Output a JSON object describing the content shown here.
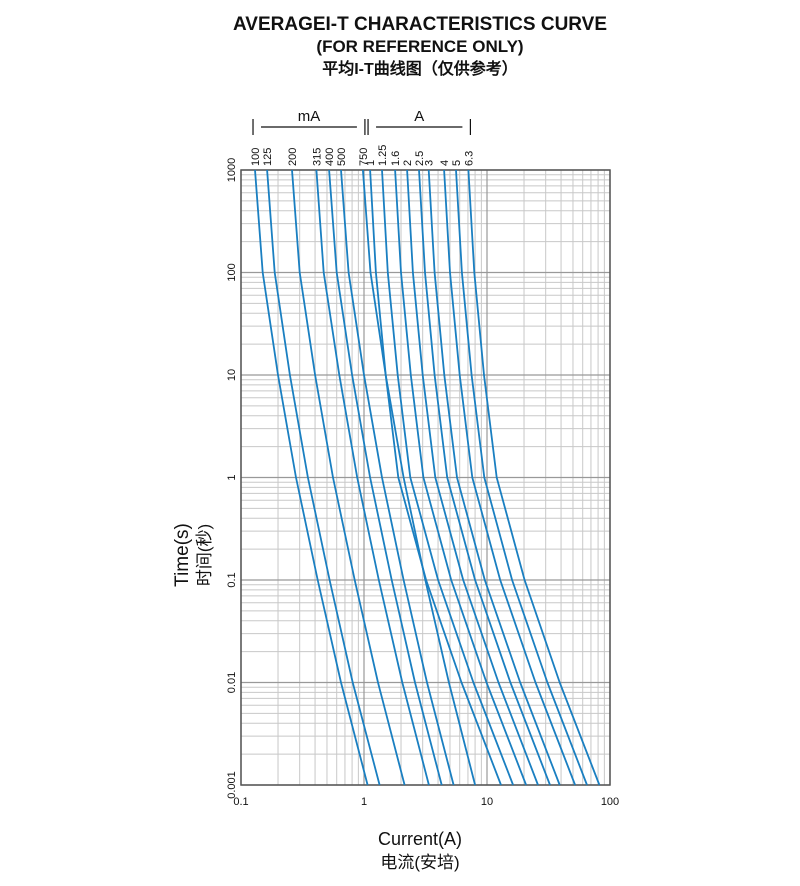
{
  "chart_data": {
    "type": "line",
    "title": "AVERAGEI-T CHARACTERISTICS CURVE",
    "subtitle": "(FOR REFERENCE ONLY)",
    "subtitle_cn": "平均I-T曲线图（仅供参考）",
    "x_label": "Current(A)",
    "x_label_cn": "电流(安培)",
    "y_label": "Time(s)",
    "y_label_cn": "时间(秒)",
    "log_x": true,
    "log_y": true,
    "grid": true,
    "minor_grid": true,
    "xlim": [
      0.1,
      100
    ],
    "xticks": [
      0.1,
      1,
      10,
      100
    ],
    "ylim": [
      0.001,
      1000
    ],
    "yticks": [
      0.001,
      0.01,
      0.1,
      1,
      10,
      100,
      1000
    ],
    "series": [
      {
        "name": "100",
        "unit": "mA",
        "color": "#1a7fc1",
        "x": [
          0.13,
          0.15,
          0.2,
          0.28,
          0.42,
          0.65,
          1.07
        ],
        "values": [
          1000,
          100,
          10,
          1,
          0.1,
          0.01,
          0.001
        ]
      },
      {
        "name": "125",
        "unit": "mA",
        "color": "#1a7fc1",
        "x": [
          0.163,
          0.188,
          0.25,
          0.35,
          0.525,
          0.81,
          1.34
        ],
        "values": [
          1000,
          100,
          10,
          1,
          0.1,
          0.01,
          0.001
        ]
      },
      {
        "name": "200",
        "unit": "mA",
        "color": "#1a7fc1",
        "x": [
          0.26,
          0.3,
          0.4,
          0.56,
          0.84,
          1.3,
          2.14
        ],
        "values": [
          1000,
          100,
          10,
          1,
          0.1,
          0.01,
          0.001
        ]
      },
      {
        "name": "315",
        "unit": "mA",
        "color": "#1a7fc1",
        "x": [
          0.41,
          0.47,
          0.63,
          0.88,
          1.32,
          2.05,
          3.37
        ],
        "values": [
          1000,
          100,
          10,
          1,
          0.1,
          0.01,
          0.001
        ]
      },
      {
        "name": "400",
        "unit": "mA",
        "color": "#1a7fc1",
        "x": [
          0.52,
          0.6,
          0.8,
          1.12,
          1.68,
          2.6,
          4.28
        ],
        "values": [
          1000,
          100,
          10,
          1,
          0.1,
          0.01,
          0.001
        ]
      },
      {
        "name": "500",
        "unit": "mA",
        "color": "#1a7fc1",
        "x": [
          0.65,
          0.75,
          1.0,
          1.4,
          2.1,
          3.25,
          5.35
        ],
        "values": [
          1000,
          100,
          10,
          1,
          0.1,
          0.01,
          0.001
        ]
      },
      {
        "name": "750",
        "unit": "mA",
        "color": "#1a7fc1",
        "x": [
          0.98,
          1.13,
          1.5,
          2.1,
          3.15,
          4.9,
          8.0
        ],
        "values": [
          1000,
          100,
          10,
          1,
          0.1,
          0.01,
          0.001
        ]
      },
      {
        "name": "1",
        "unit": "A",
        "color": "#1a7fc1",
        "x": [
          1.12,
          1.25,
          1.5,
          1.9,
          3.2,
          6.2,
          13
        ],
        "values": [
          1000,
          100,
          10,
          1,
          0.1,
          0.01,
          0.001
        ]
      },
      {
        "name": "1.25",
        "unit": "A",
        "color": "#1a7fc1",
        "x": [
          1.4,
          1.56,
          1.88,
          2.38,
          4,
          7.75,
          16.3
        ],
        "values": [
          1000,
          100,
          10,
          1,
          0.1,
          0.01,
          0.001
        ]
      },
      {
        "name": "1.6",
        "unit": "A",
        "color": "#1a7fc1",
        "x": [
          1.79,
          2,
          2.4,
          3.04,
          5.12,
          9.9,
          20.8
        ],
        "values": [
          1000,
          100,
          10,
          1,
          0.1,
          0.01,
          0.001
        ]
      },
      {
        "name": "2",
        "unit": "A",
        "color": "#1a7fc1",
        "x": [
          2.24,
          2.5,
          3,
          3.8,
          6.4,
          12.4,
          26
        ],
        "values": [
          1000,
          100,
          10,
          1,
          0.1,
          0.01,
          0.001
        ]
      },
      {
        "name": "2.5",
        "unit": "A",
        "color": "#1a7fc1",
        "x": [
          2.8,
          3.13,
          3.75,
          4.75,
          8,
          15.5,
          32.5
        ],
        "values": [
          1000,
          100,
          10,
          1,
          0.1,
          0.01,
          0.001
        ]
      },
      {
        "name": "3",
        "unit": "A",
        "color": "#1a7fc1",
        "x": [
          3.36,
          3.75,
          4.5,
          5.7,
          9.6,
          18.6,
          39
        ],
        "values": [
          1000,
          100,
          10,
          1,
          0.1,
          0.01,
          0.001
        ]
      },
      {
        "name": "4",
        "unit": "A",
        "color": "#1a7fc1",
        "x": [
          4.48,
          5,
          6,
          7.6,
          12.8,
          24.8,
          52
        ],
        "values": [
          1000,
          100,
          10,
          1,
          0.1,
          0.01,
          0.001
        ]
      },
      {
        "name": "5",
        "unit": "A",
        "color": "#1a7fc1",
        "x": [
          5.6,
          6.25,
          7.5,
          9.5,
          16,
          31,
          65
        ],
        "values": [
          1000,
          100,
          10,
          1,
          0.1,
          0.01,
          0.001
        ]
      },
      {
        "name": "6.3",
        "unit": "A",
        "color": "#1a7fc1",
        "x": [
          7.06,
          7.88,
          9.45,
          12,
          20.2,
          39,
          82
        ],
        "values": [
          1000,
          100,
          10,
          1,
          0.1,
          0.01,
          0.001
        ]
      }
    ]
  }
}
